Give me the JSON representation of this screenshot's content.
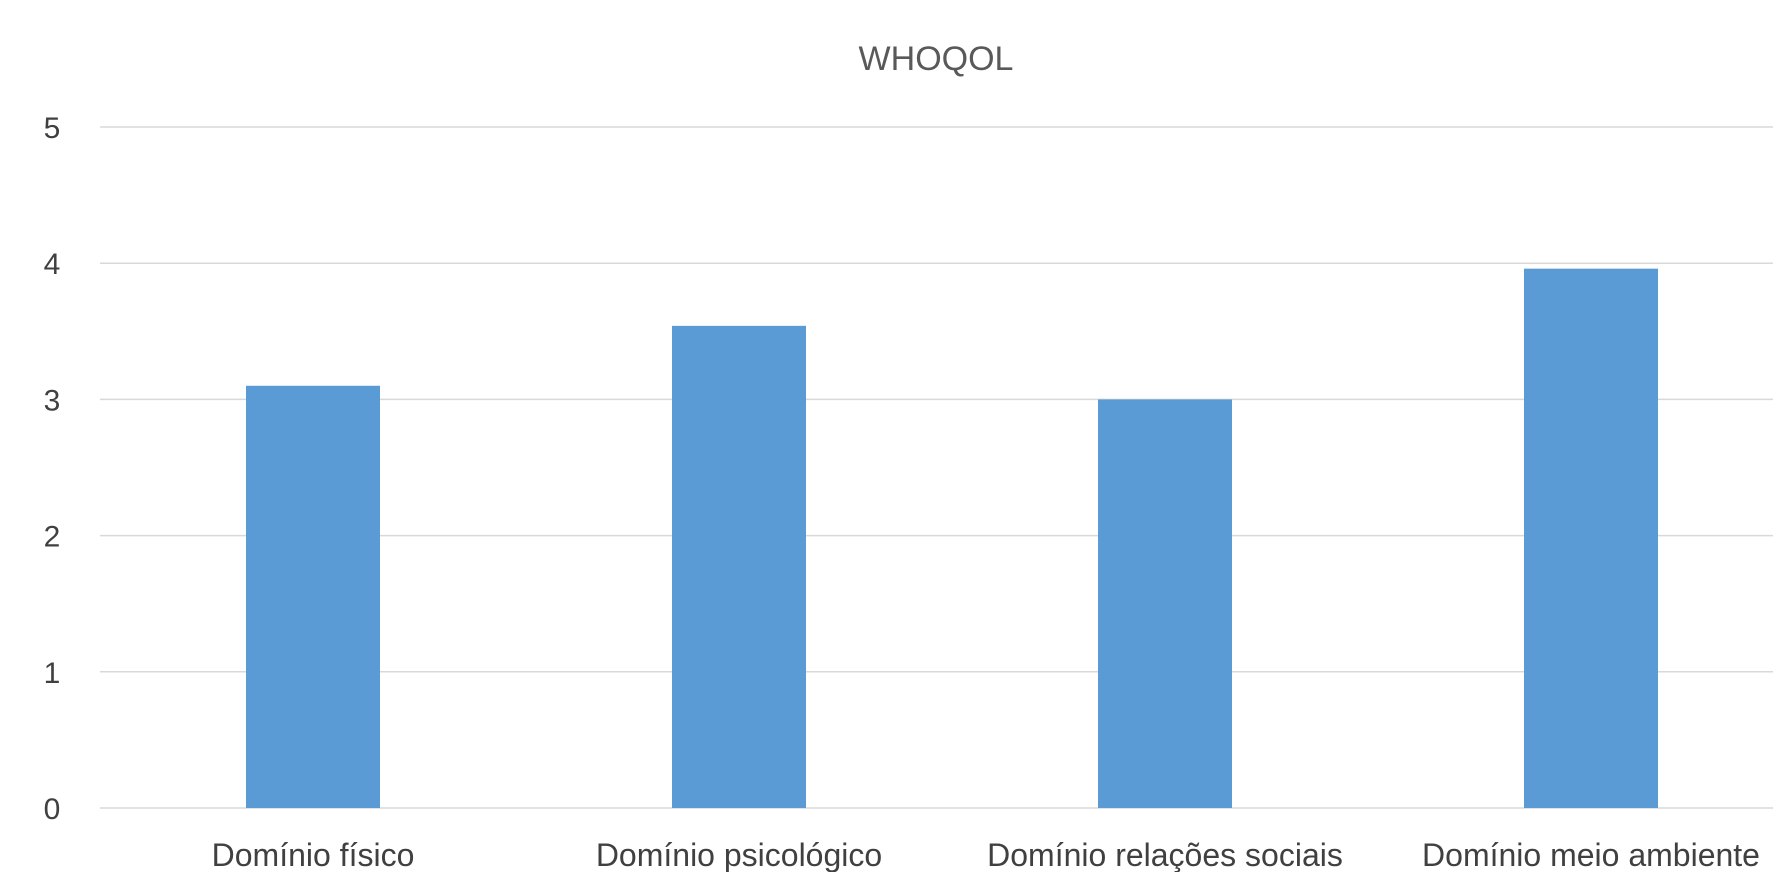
{
  "chart_data": {
    "type": "bar",
    "title": "WHOQOL",
    "categories": [
      "Domínio físico",
      "Domínio psicológico",
      "Domínio relações sociais",
      "Domínio meio ambiente"
    ],
    "values": [
      3.1,
      3.54,
      3.0,
      3.96
    ],
    "ylim": [
      0,
      5
    ],
    "yticks": [
      0,
      1,
      2,
      3,
      4,
      5
    ],
    "xlabel": "",
    "ylabel": "",
    "grid": true,
    "legend": "none",
    "bar_color": "#5b9bd5"
  }
}
